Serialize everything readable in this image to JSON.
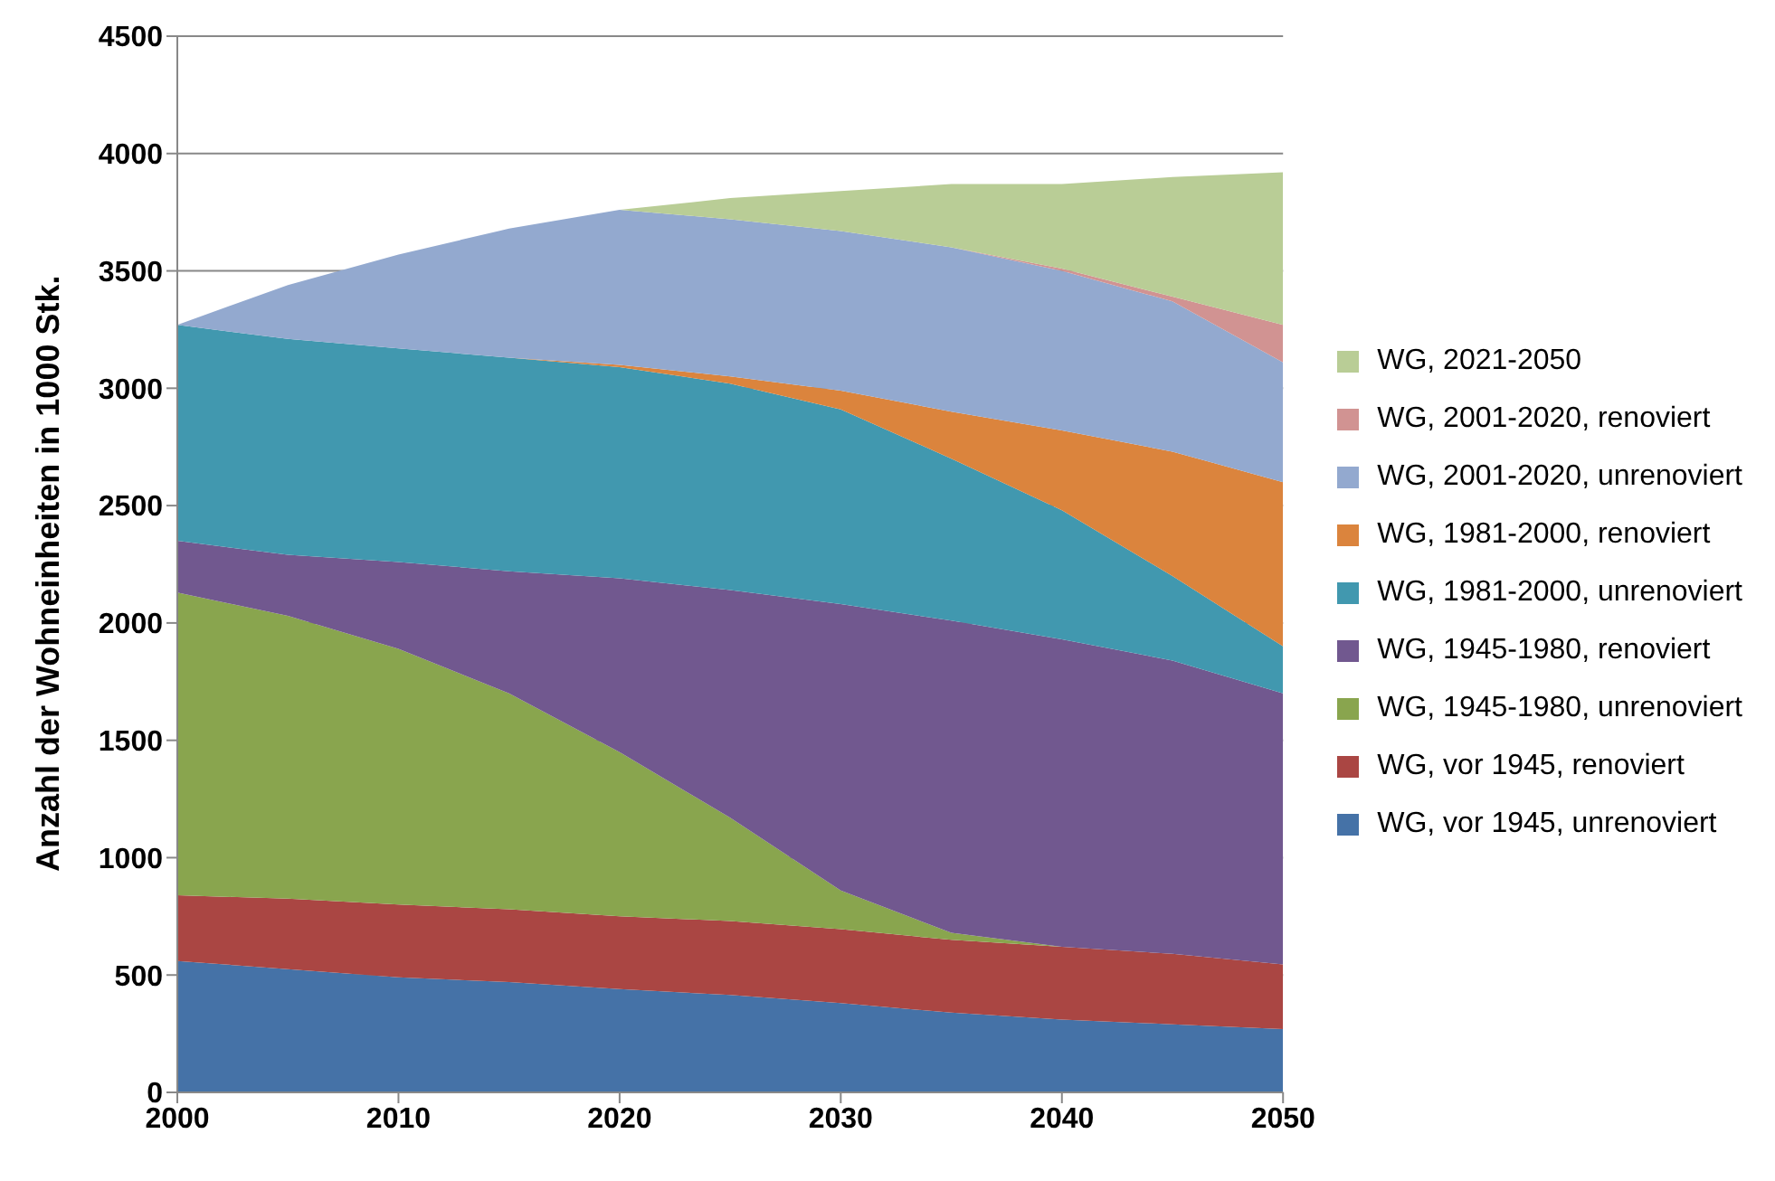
{
  "chart_data": {
    "type": "area",
    "stacked": true,
    "ylabel": "Anzahl der Wohneinheiten in 1000 Stk.",
    "x": [
      2000,
      2005,
      2010,
      2015,
      2020,
      2025,
      2030,
      2035,
      2040,
      2045,
      2050
    ],
    "xlim": [
      2000,
      2050
    ],
    "xticks": [
      2000,
      2010,
      2020,
      2030,
      2040,
      2050
    ],
    "ylim": [
      0,
      4500
    ],
    "yticks": [
      0,
      500,
      1000,
      1500,
      2000,
      2500,
      3000,
      3500,
      4000,
      4500
    ],
    "grid": "y",
    "legend": "right",
    "series": [
      {
        "name": "WG, vor 1945, unrenoviert",
        "color": "#4572a7",
        "values": [
          560,
          525,
          490,
          470,
          440,
          415,
          380,
          340,
          310,
          290,
          270
        ]
      },
      {
        "name": "WG, vor 1945, renoviert",
        "color": "#aa4643",
        "values": [
          280,
          300,
          310,
          310,
          310,
          315,
          315,
          310,
          310,
          300,
          275
        ]
      },
      {
        "name": "WG, 1945-1980, unrenoviert",
        "color": "#89a54e",
        "values": [
          1290,
          1205,
          1090,
          920,
          700,
          440,
          165,
          30,
          0,
          0,
          0
        ]
      },
      {
        "name": "WG, 1945-1980, renoviert",
        "color": "#71588f",
        "values": [
          220,
          260,
          370,
          520,
          740,
          970,
          1220,
          1330,
          1310,
          1250,
          1155
        ]
      },
      {
        "name": "WG, 1981-2000, unrenoviert",
        "color": "#4198af",
        "values": [
          920,
          920,
          910,
          910,
          900,
          880,
          830,
          690,
          550,
          360,
          200
        ]
      },
      {
        "name": "WG, 1981-2000, renoviert",
        "color": "#db843d",
        "values": [
          0,
          0,
          0,
          0,
          10,
          30,
          80,
          200,
          340,
          530,
          700
        ]
      },
      {
        "name": "WG, 2001-2020, unrenoviert",
        "color": "#93a9cf",
        "values": [
          0,
          230,
          400,
          550,
          660,
          670,
          680,
          700,
          680,
          640,
          510
        ]
      },
      {
        "name": "WG, 2001-2020, renoviert",
        "color": "#d19392",
        "values": [
          0,
          0,
          0,
          0,
          0,
          0,
          0,
          0,
          10,
          20,
          160
        ]
      },
      {
        "name": "WG, 2021-2050",
        "color": "#b9cd96",
        "values": [
          0,
          0,
          0,
          0,
          0,
          90,
          170,
          270,
          360,
          510,
          650
        ]
      }
    ]
  }
}
